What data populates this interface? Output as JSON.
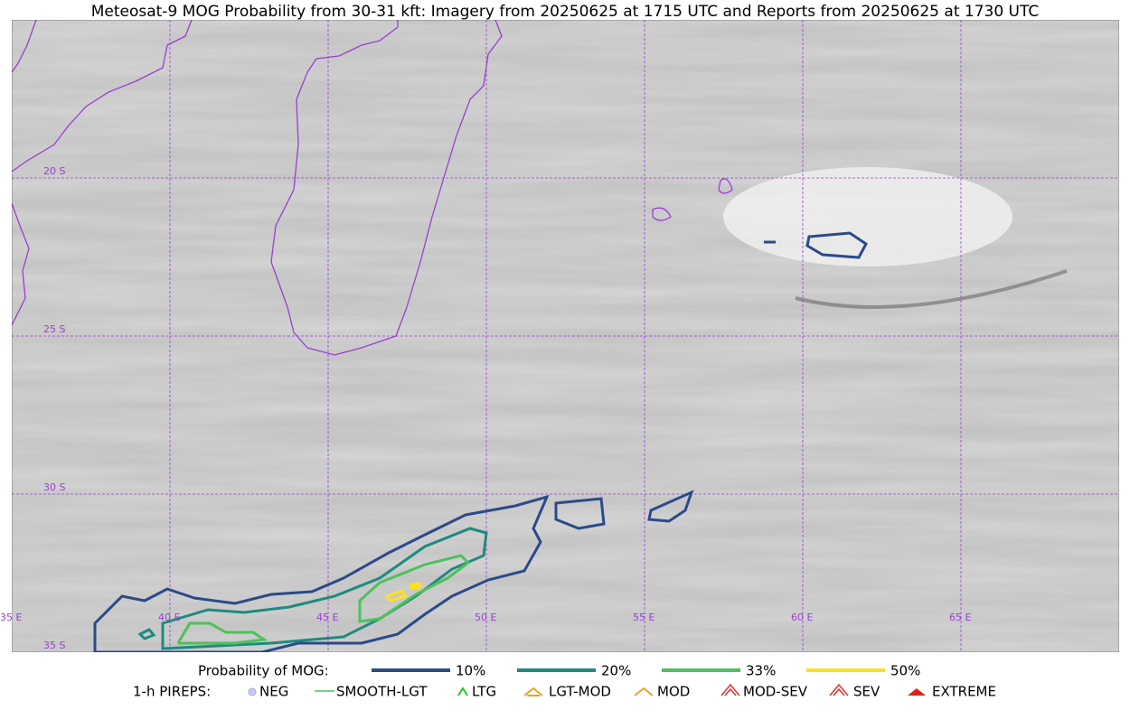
{
  "title": "Meteosat-9 MOG Probability from 30-31 kft: Imagery from 20250625 at 1715 UTC and Reports from 20250625 at 1730 UTC",
  "grid_labels": [
    "20 S",
    "25 S",
    "30 S",
    "35 S",
    "35 E",
    "40 E",
    "45 E",
    "50 E",
    "55 E",
    "60 E",
    "65 E"
  ],
  "legend": {
    "probability": {
      "label": "Probability of MOG:",
      "items": [
        "10%",
        "20%",
        "33%",
        "50%"
      ]
    },
    "pireps": {
      "label": "1-h PIREPS:",
      "items": [
        "NEG",
        "SMOOTH-LGT",
        "LTG",
        "LGT-MOD",
        "MOD",
        "MOD-SEV",
        "SEV",
        "EXTREME"
      ]
    }
  }
}
